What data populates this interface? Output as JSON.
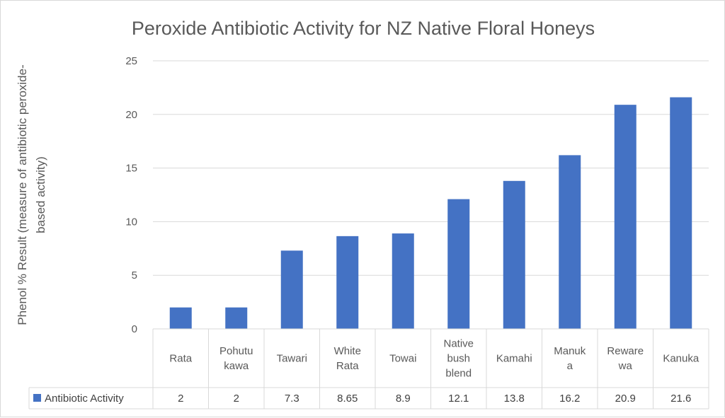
{
  "chart_data": {
    "type": "bar",
    "title": "Peroxide Antibiotic Activity for NZ Native Floral Honeys",
    "ylabel_lines": [
      "Phenol % Result (measure of antibiotic peroxide-",
      "based activity)"
    ],
    "xlabel": "",
    "categories": [
      [
        "Rata"
      ],
      [
        "Pohutu",
        "kawa"
      ],
      [
        "Tawari"
      ],
      [
        "White",
        "Rata"
      ],
      [
        "Towai"
      ],
      [
        "Native",
        "bush",
        "blend"
      ],
      [
        "Kamahi"
      ],
      [
        "Manuk",
        "a"
      ],
      [
        "Reware",
        "wa"
      ],
      [
        "Kanuka"
      ]
    ],
    "series": [
      {
        "name": "Antibiotic Activity",
        "values": [
          2,
          2,
          7.3,
          8.65,
          8.9,
          12.1,
          13.8,
          16.2,
          20.9,
          21.6
        ],
        "value_labels": [
          "2",
          "2",
          "7.3",
          "8.65",
          "8.9",
          "12.1",
          "13.8",
          "16.2",
          "20.9",
          "21.6"
        ],
        "color": "#4472C4"
      }
    ],
    "ylim": [
      0,
      25
    ],
    "yticks": [
      0,
      5,
      10,
      15,
      20,
      25
    ],
    "grid": true,
    "legend": "data-table-left"
  },
  "colors": {
    "bar": "#4472C4",
    "grid": "#d9d9d9",
    "text": "#595959"
  }
}
